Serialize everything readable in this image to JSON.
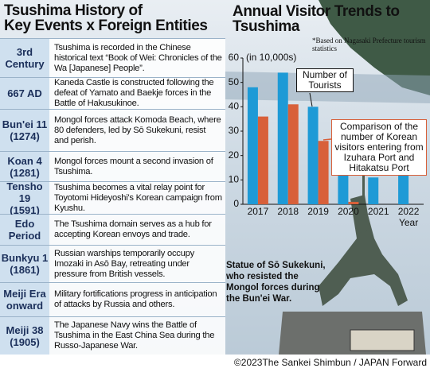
{
  "header": {
    "title": [
      "Tsushima History of",
      "Key Events x Foreign Entities"
    ]
  },
  "timeline": [
    {
      "era": [
        "3rd",
        "Century"
      ],
      "event": "Tsushima is recorded in the Chinese historical text “Book of Wei: Chronicles of the Wa [Japanese] People”."
    },
    {
      "era": [
        "667 AD"
      ],
      "event": "Kaneda Castle is constructed following the defeat of Yamato and Baekje forces in the Battle of Hakusukinoe."
    },
    {
      "era": [
        "Bun'ei 11",
        "(1274)"
      ],
      "event": "Mongol forces attack Komoda Beach, where 80 defenders, led by Sō Sukekuni, resist and perish."
    },
    {
      "era": [
        "Koan 4",
        "(1281)"
      ],
      "event": "Mongol forces mount a second invasion of Tsushima."
    },
    {
      "era": [
        "Tensho 19",
        "(1591)"
      ],
      "event": "Tsushima becomes a vital relay point for Toyotomi Hideyoshi's Korean campaign from Kyushu."
    },
    {
      "era": [
        "Edo",
        "Period"
      ],
      "event": "The Tsushima domain serves as a hub for accepting Korean envoys and trade."
    },
    {
      "era": [
        "Bunkyu 1",
        "(1861)"
      ],
      "event": "Russian warships temporarily occupy Imozaki in Asō Bay, retreating under pressure from British vessels."
    },
    {
      "era": [
        "Meiji Era",
        "onward"
      ],
      "event": "Military fortifications progress in anticipation of attacks by Russia and others."
    },
    {
      "era": [
        "Meiji 38",
        "(1905)"
      ],
      "event": "The Japanese Navy wins the Battle of Tsushima in the East China Sea during the Russo-Japanese War."
    }
  ],
  "chart_data": {
    "type": "bar",
    "title": [
      "Annual Visitor Trends to",
      "Tsushima"
    ],
    "note": "*Based on Nagasaki Prefecture tourism statistics",
    "ylabel": "(in 10,000s)",
    "xlabel": "Year",
    "categories": [
      "2017",
      "2018",
      "2019",
      "2020",
      "2021",
      "2022"
    ],
    "series": [
      {
        "name": "Number of Tourists",
        "color": "#1e9ad6",
        "values": [
          48,
          54,
          40,
          12,
          11,
          13
        ]
      },
      {
        "name": "Comparison of the number of Korean visitors entering from Izuhara Port and Hitakatsu Port",
        "color": "#d8603a",
        "values": [
          36,
          41,
          26,
          1,
          0,
          0
        ]
      }
    ],
    "ylim": [
      0,
      60
    ],
    "yticks": [
      0,
      10,
      20,
      30,
      40,
      50,
      60
    ]
  },
  "caption": "Statue of Sō Sukekuni, who resisted the Mongol forces during the Bun'ei War.",
  "credit": "©2023The Sankei Shimbun / JAPAN Forward"
}
